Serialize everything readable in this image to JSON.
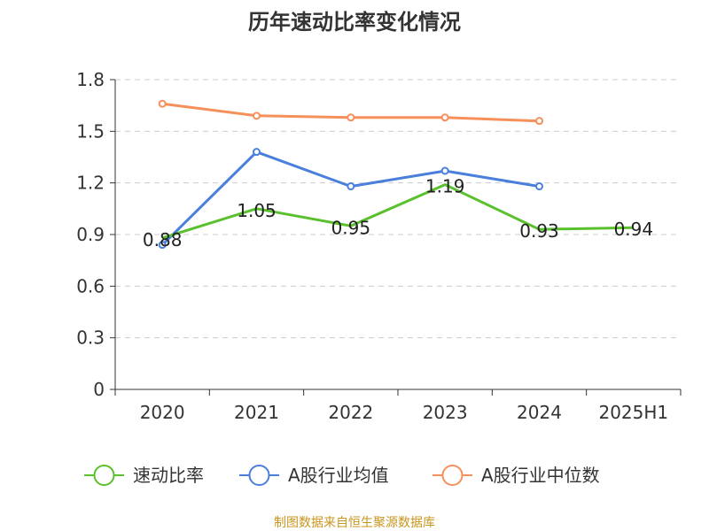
{
  "source_note": "制图数据来自恒生聚源数据库",
  "chart_data": {
    "type": "line",
    "title": "历年速动比率变化情况",
    "categories": [
      "2020",
      "2021",
      "2022",
      "2023",
      "2024",
      "2025H1"
    ],
    "y_ticks": [
      "0",
      "0.3",
      "0.6",
      "0.9",
      "1.2",
      "1.5",
      "1.8"
    ],
    "ylim": [
      0,
      1.8
    ],
    "grid": true,
    "legend_position": "bottom",
    "series": [
      {
        "name": "速动比率",
        "color": "#5ac02d",
        "values": [
          0.88,
          1.05,
          0.95,
          1.19,
          0.93,
          0.94
        ],
        "show_labels": true,
        "show_markers": false
      },
      {
        "name": "A股行业均值",
        "color": "#4a7fdc",
        "values": [
          0.84,
          1.38,
          1.18,
          1.27,
          1.18,
          null
        ],
        "show_labels": false,
        "show_markers": true
      },
      {
        "name": "A股行业中位数",
        "color": "#f5905a",
        "values": [
          1.66,
          1.59,
          1.58,
          1.58,
          1.56,
          null
        ],
        "show_labels": false,
        "show_markers": true
      }
    ]
  }
}
